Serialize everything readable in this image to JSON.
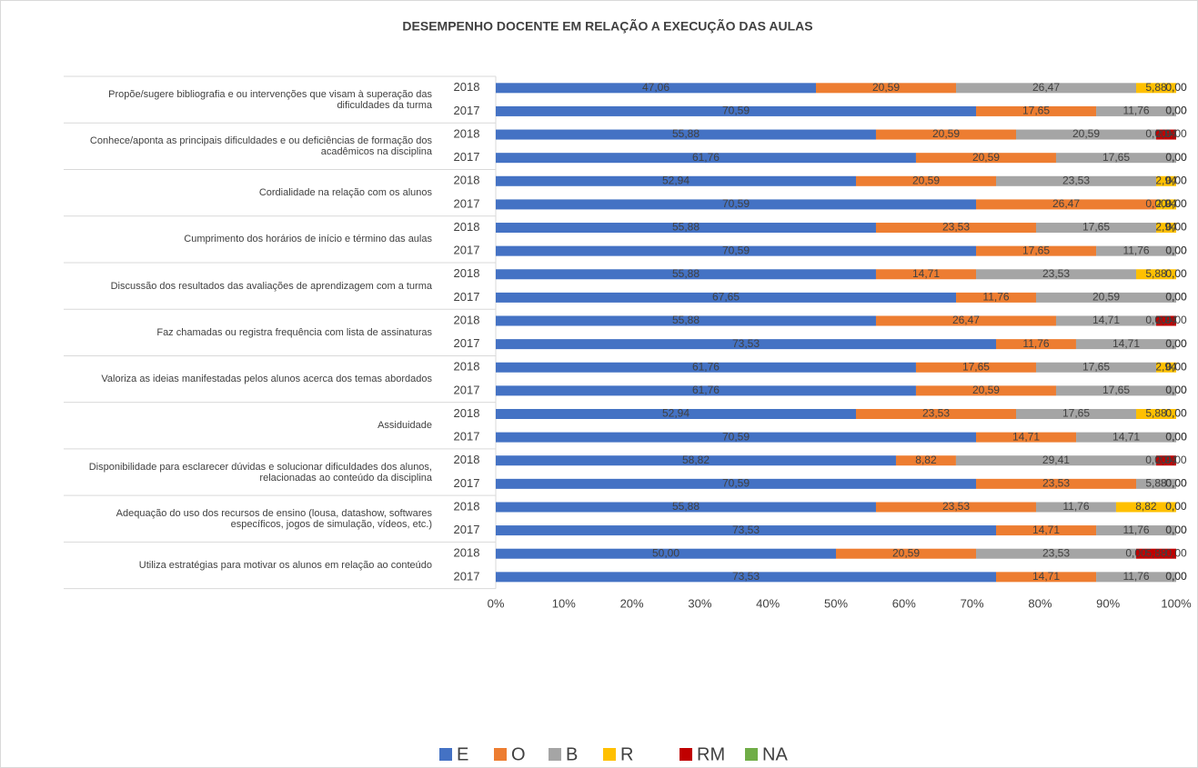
{
  "chart_data": {
    "type": "stacked-bar-horizontal-100",
    "title": "DESEMPENHO DOCENTE EM RELAÇÃO A EXECUÇÃO DAS AULAS",
    "groups": [
      "Propõe/sugere bibliografia e ou intervenções que visam à superação das dificuldades da turma",
      "Conhece/aponta as principais dificuldades e ou deficiências de formação dos acadêmicos na disciplina",
      "Cordialidade na relação com os alunos",
      "Cumprimento dos horários de início e término das aulas",
      "Discussão dos resultados das avaliações de aprendizagem com a turma",
      "Faz chamadas ou registra frequência com lista de assinaturas",
      "Valoriza as ideias manifestadas pelos alunos acerca dos temas abordados",
      "Assiduidade",
      "Disponibilidade para esclarecer dúvidas e solucionar dificuldades dos alunos, relacionadas ao conteúdo da disciplina",
      "Adequação do uso dos recursos de ensino (lousa, datashow, softwares específicos, jogos de simulação, vídeos, etc.)",
      "Utiliza estratégias para motivar os alunos em relação ao conteúdo"
    ],
    "categories": [
      "2018",
      "2017",
      "2018",
      "2017",
      "2018",
      "2017",
      "2018",
      "2017",
      "2018",
      "2017",
      "2018",
      "2017",
      "2018",
      "2017",
      "2018",
      "2017",
      "2018",
      "2017",
      "2018",
      "2017",
      "2018",
      "2017"
    ],
    "series": [
      {
        "name": "E",
        "color": "#4472c4",
        "values": [
          47.06,
          70.59,
          55.88,
          61.76,
          52.94,
          70.59,
          55.88,
          70.59,
          55.88,
          67.65,
          55.88,
          73.53,
          61.76,
          61.76,
          52.94,
          70.59,
          58.82,
          70.59,
          55.88,
          73.53,
          50.0,
          73.53
        ],
        "value_labels": [
          "47,06",
          "70,59",
          "55,88",
          "61,76",
          "52,94",
          "70,59",
          "55,88",
          "70,59",
          "55,88",
          "67,65",
          "55,88",
          "73,53",
          "61,76",
          "61,76",
          "52,94",
          "70,59",
          "58,82",
          "70,59",
          "55,88",
          "73,53",
          "50,00",
          "73,53"
        ]
      },
      {
        "name": "O",
        "color": "#ed7d31",
        "values": [
          20.59,
          17.65,
          20.59,
          20.59,
          20.59,
          26.47,
          23.53,
          17.65,
          14.71,
          11.76,
          26.47,
          11.76,
          17.65,
          20.59,
          23.53,
          14.71,
          8.82,
          23.53,
          23.53,
          14.71,
          20.59,
          14.71
        ],
        "value_labels": [
          "20,59",
          "17,65",
          "20,59",
          "20,59",
          "20,59",
          "26,47",
          "23,53",
          "17,65",
          "14,71",
          "11,76",
          "26,47",
          "11,76",
          "17,65",
          "20,59",
          "23,53",
          "14,71",
          "8,82",
          "23,53",
          "23,53",
          "14,71",
          "20,59",
          "14,71"
        ]
      },
      {
        "name": "B",
        "color": "#a5a5a5",
        "values": [
          26.47,
          11.76,
          20.59,
          17.65,
          23.53,
          0,
          17.65,
          11.76,
          23.53,
          20.59,
          14.71,
          14.71,
          17.65,
          17.65,
          17.65,
          14.71,
          29.41,
          5.88,
          11.76,
          11.76,
          23.53,
          11.76
        ],
        "value_labels": [
          "26,47",
          "11,76",
          "20,59",
          "17,65",
          "23,53",
          "0,00",
          "17,65",
          "11,76",
          "23,53",
          "20,59",
          "14,71",
          "14,71",
          "17,65",
          "17,65",
          "17,65",
          "14,71",
          "29,41",
          "5,88",
          "11,76",
          "11,76",
          "23,53",
          "11,76"
        ]
      },
      {
        "name": "R",
        "color": "#ffc000",
        "values": [
          5.88,
          0,
          0,
          0,
          2.94,
          2.94,
          2.94,
          0,
          5.88,
          0,
          0,
          0,
          2.94,
          0,
          5.88,
          0,
          0,
          0,
          8.82,
          0,
          0,
          0
        ],
        "value_labels": [
          "5,88",
          "0,00",
          "0,00",
          "0,00",
          "2,94",
          "2,94",
          "2,94",
          "0,00",
          "5,88",
          "0,00",
          "0,00",
          "0,00",
          "2,94",
          "0,00",
          "5,88",
          "0,00",
          "0,00",
          "0,00",
          "8,82",
          "0,00",
          "0,00",
          "0,00"
        ]
      },
      {
        "name": "RM",
        "color": "#c00000",
        "values": [
          0,
          0,
          2.94,
          0,
          0,
          0,
          0,
          0,
          0,
          0,
          2.94,
          0,
          0,
          0,
          0,
          0,
          2.94,
          0,
          0,
          0,
          5.88,
          0
        ],
        "value_labels": [
          "0,00",
          "0,00",
          "2,94",
          "0,00",
          "0,00",
          "0,00",
          "0,00",
          "0,00",
          "0,00",
          "0,00",
          "2,94",
          "0,00",
          "0,00",
          "0,00",
          "0,00",
          "0,00",
          "2,94",
          "0,00",
          "0,00",
          "0,00",
          "5,88",
          "0,00"
        ]
      },
      {
        "name": "NA",
        "color": "#70ad47",
        "values": [
          0,
          0,
          0,
          0,
          0,
          0,
          0,
          0,
          0,
          0,
          0,
          0,
          0,
          0,
          0,
          0,
          0,
          0,
          0,
          0,
          0,
          0
        ],
        "value_labels": [
          "0,00",
          "0,00",
          "0,00",
          "0,00",
          "0,00",
          "0,00",
          "0,00",
          "0,00",
          "0,00",
          "0,00",
          "0,00",
          "0,00",
          "0,00",
          "0,00",
          "0,00",
          "0,00",
          "0,00",
          "0,00",
          "0,00",
          "0,00",
          "0,00",
          "0,00"
        ]
      }
    ],
    "xlim": [
      0,
      100
    ],
    "xticks": [
      {
        "value": 0,
        "label": "0%"
      },
      {
        "value": 10,
        "label": "10%"
      },
      {
        "value": 20,
        "label": "20%"
      },
      {
        "value": 30,
        "label": "30%"
      },
      {
        "value": 40,
        "label": "40%"
      },
      {
        "value": 50,
        "label": "50%"
      },
      {
        "value": 60,
        "label": "60%"
      },
      {
        "value": 70,
        "label": "70%"
      },
      {
        "value": 80,
        "label": "80%"
      },
      {
        "value": 90,
        "label": "90%"
      },
      {
        "value": 100,
        "label": "100%"
      }
    ],
    "legend": "bottom"
  }
}
